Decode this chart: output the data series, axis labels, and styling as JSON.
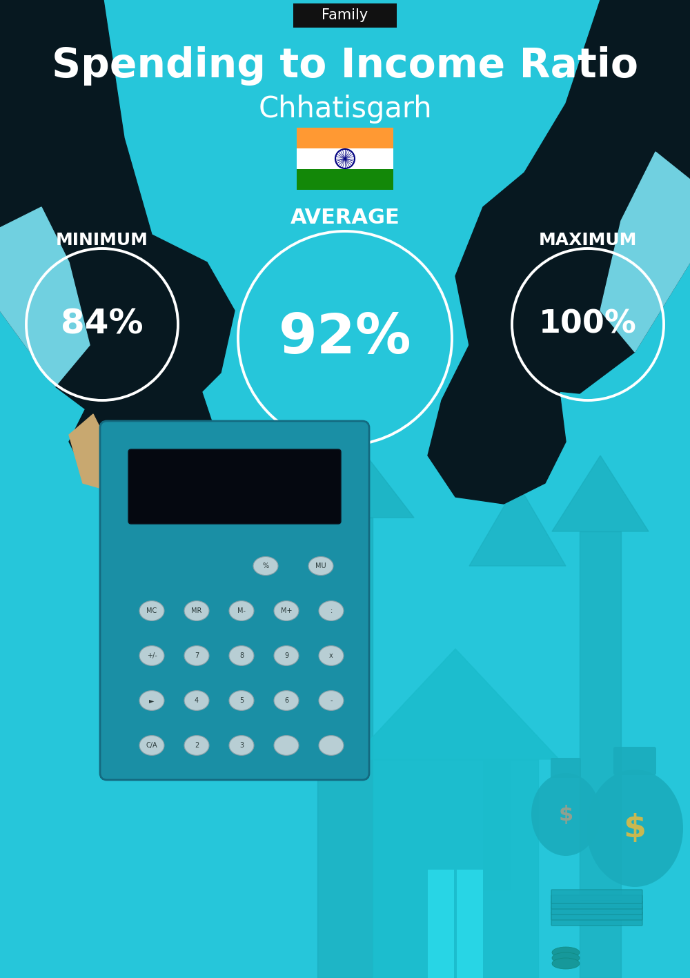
{
  "bg_color": "#26C6DA",
  "title_tag": "Family",
  "title_tag_bg": "#111111",
  "title_tag_color": "#ffffff",
  "main_title": "Spending to Income Ratio",
  "subtitle": "Chhatisgarh",
  "text_color": "#ffffff",
  "avg_label": "AVERAGE",
  "min_label": "MINIMUM",
  "max_label": "MAXIMUM",
  "min_value": "84%",
  "avg_value": "92%",
  "max_value": "100%",
  "circle_linewidth": 2.5,
  "orange_color": "#FF9933",
  "white_color": "#FFFFFF",
  "green_color": "#138808",
  "chakra_color": "#000080",
  "dark_teal": "#1AACBC",
  "mid_teal": "#20B8C8",
  "dark_color": "#071820",
  "calc_color": "#1A8FA5",
  "cuff_color": "#70D0E0",
  "btn_color": "#B8CED4",
  "house_color": "#1AACBC",
  "door_color": "#28D5E5",
  "money_color": "#1AACBC"
}
